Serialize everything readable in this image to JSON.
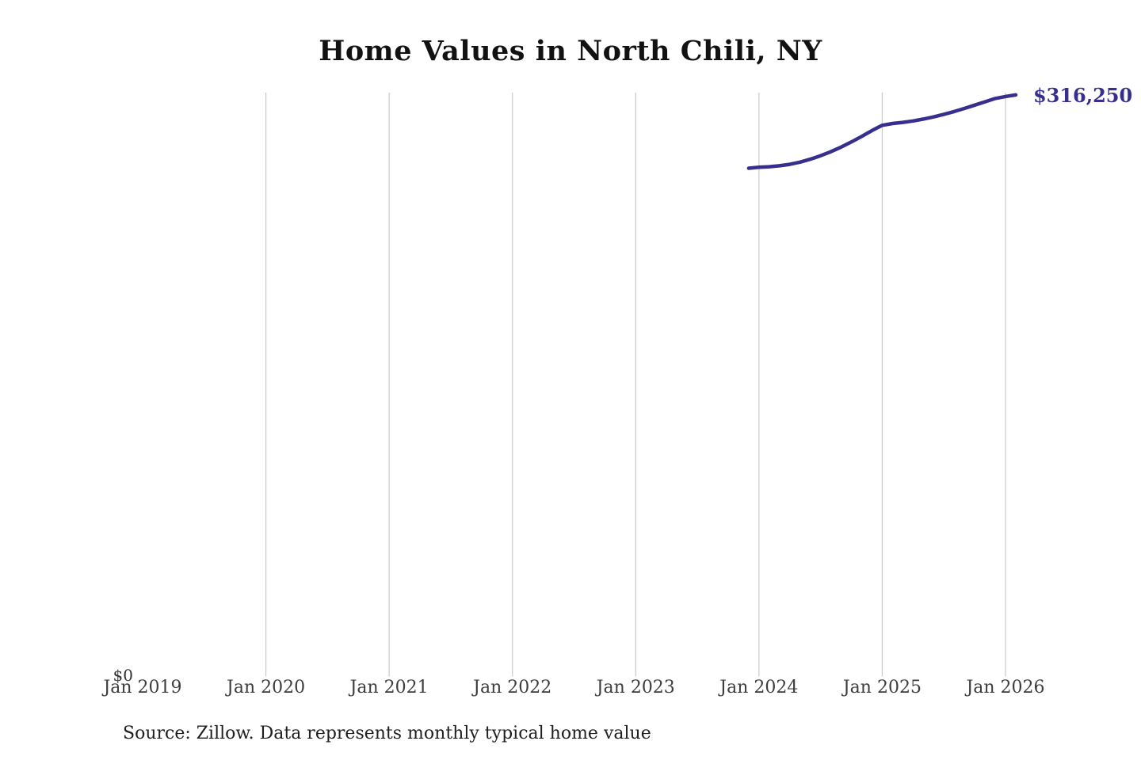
{
  "accent_color": "#362f8e",
  "grid_color": "#c8c8c8",
  "header": {
    "title": "Home Values in North Chili, NY"
  },
  "footer": {
    "source_note": "Source: Zillow. Data represents monthly typical home value"
  },
  "chart_data": {
    "type": "line",
    "title": "Home Values in North Chili, NY",
    "legend": "none",
    "grid": "vertical-only",
    "x_ticks": [
      {
        "label": "Jan 2019",
        "year": 2019,
        "gridline": false
      },
      {
        "label": "Jan 2020",
        "year": 2020,
        "gridline": true
      },
      {
        "label": "Jan 2021",
        "year": 2021,
        "gridline": true
      },
      {
        "label": "Jan 2022",
        "year": 2022,
        "gridline": true
      },
      {
        "label": "Jan 2023",
        "year": 2023,
        "gridline": true
      },
      {
        "label": "Jan 2024",
        "year": 2024,
        "gridline": true
      },
      {
        "label": "Jan 2025",
        "year": 2025,
        "gridline": true
      },
      {
        "label": "Jan 2026",
        "year": 2026,
        "gridline": true
      }
    ],
    "y_axis": {
      "min_label": "$0",
      "min": 0,
      "max": 317500
    },
    "end_label": "$316,250",
    "series": [
      {
        "name": "Typical home value",
        "color": "#362f8e",
        "x": [
          "2023-12",
          "2024-01",
          "2024-02",
          "2024-03",
          "2024-04",
          "2024-05",
          "2024-06",
          "2024-07",
          "2024-08",
          "2024-09",
          "2024-10",
          "2024-11",
          "2024-12",
          "2025-01",
          "2025-02",
          "2025-03",
          "2025-04",
          "2025-05",
          "2025-06",
          "2025-07",
          "2025-08",
          "2025-09",
          "2025-10",
          "2025-11",
          "2025-12",
          "2026-01",
          "2026-02"
        ],
        "values": [
          276400,
          276900,
          277200,
          277700,
          278500,
          279700,
          281300,
          283200,
          285400,
          287900,
          290700,
          293700,
          296900,
          299700,
          300700,
          301300,
          302100,
          303100,
          304300,
          305700,
          307200,
          308900,
          310700,
          312500,
          314300,
          315400,
          316250
        ]
      }
    ]
  }
}
